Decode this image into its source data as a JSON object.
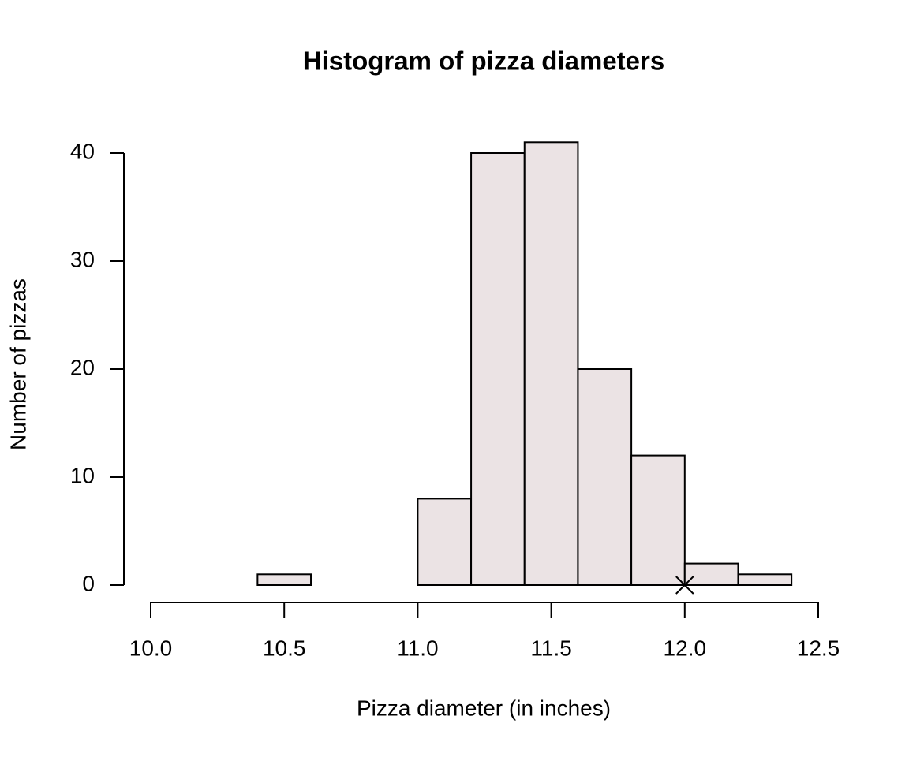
{
  "chart_data": {
    "type": "histogram",
    "title": "Histogram of pizza diameters",
    "x_label": "Pizza diameter (in inches)",
    "y_label": "Number of pizzas",
    "bins": [
      10.4,
      10.6,
      10.8,
      11.0,
      11.2,
      11.4,
      11.6,
      11.8,
      12.0,
      12.2,
      12.4
    ],
    "values": [
      1,
      0,
      0,
      8,
      40,
      41,
      20,
      12,
      2,
      1
    ],
    "color": "#ebe3e4",
    "points": {
      "x": [
        12.0
      ],
      "y": [
        0
      ]
    },
    "xlim": [
      10.0,
      12.5
    ],
    "xticks": [
      {
        "value": 10.0,
        "label": "10.0"
      },
      {
        "value": 10.5,
        "label": "10.5"
      },
      {
        "value": 11.0,
        "label": "11.0"
      },
      {
        "value": 11.5,
        "label": "11.5"
      },
      {
        "value": 12.0,
        "label": "12.0"
      },
      {
        "value": 12.5,
        "label": "12.5"
      }
    ],
    "ylim": [
      0,
      40
    ],
    "yticks": [
      0,
      10,
      20,
      30,
      40
    ]
  }
}
